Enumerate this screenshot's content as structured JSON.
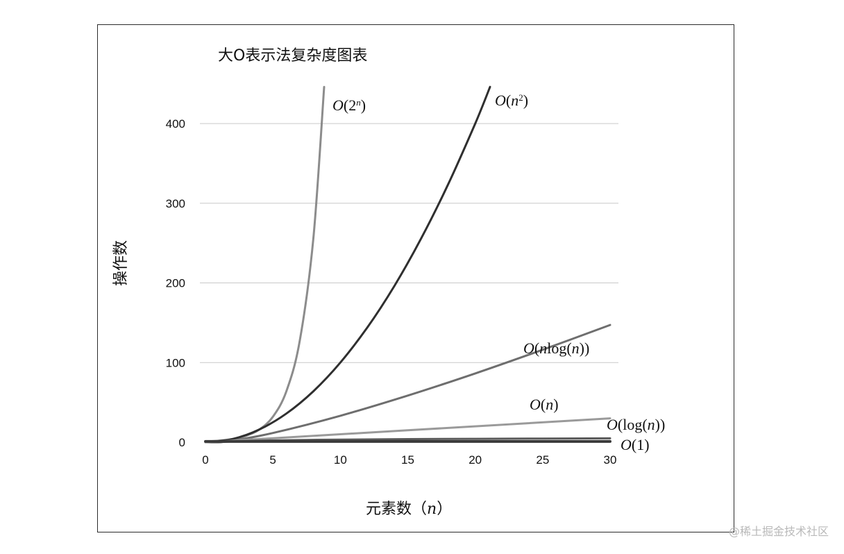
{
  "watermark": "@稀土掘金技术社区",
  "chart_data": {
    "type": "line",
    "title": "大O表示法复杂度图表",
    "xlabel_text": "元素数（",
    "xlabel_var": "n",
    "xlabel_close": "）",
    "ylabel": "操作数",
    "xlim": [
      0,
      30
    ],
    "ylim": [
      0,
      400
    ],
    "y_ticks": [
      0,
      100,
      200,
      300,
      400
    ],
    "x_ticks": [
      0,
      5,
      10,
      15,
      20,
      25,
      30
    ],
    "grid": true,
    "legend": "inline-labels",
    "series": [
      {
        "name": "O(2^n)",
        "label_parts": [
          [
            "O",
            "it"
          ],
          [
            "(2",
            "n"
          ],
          [
            "n",
            "sup"
          ],
          [
            ")",
            "n"
          ]
        ],
        "color": "#8c8c8c",
        "x": [
          0,
          1,
          2,
          3,
          4,
          5,
          6,
          7,
          8,
          8.8
        ],
        "y": [
          1,
          2,
          4,
          8,
          16,
          32,
          64,
          128,
          256,
          446
        ]
      },
      {
        "name": "O(n^2)",
        "label_parts": [
          [
            "O",
            "it"
          ],
          [
            "(",
            "n"
          ],
          [
            "n",
            "it"
          ],
          [
            "2",
            "sup"
          ],
          [
            ")",
            "n"
          ]
        ],
        "color": "#2f2f2f",
        "x": [
          0,
          2,
          4,
          6,
          8,
          10,
          12,
          14,
          16,
          18,
          20,
          21.1
        ],
        "y": [
          0,
          4,
          16,
          36,
          64,
          100,
          144,
          196,
          256,
          324,
          400,
          446
        ]
      },
      {
        "name": "O(nlog(n))",
        "label_parts": [
          [
            "O",
            "it"
          ],
          [
            "(",
            "n"
          ],
          [
            "n",
            "it"
          ],
          [
            "log(",
            "n"
          ],
          [
            "n",
            "it"
          ],
          [
            "))",
            "n"
          ]
        ],
        "color": "#6e6e6e",
        "x": [
          0,
          1,
          2,
          5,
          10,
          15,
          20,
          25,
          30
        ],
        "y": [
          0,
          0,
          2,
          11.6,
          33.2,
          58.6,
          86.4,
          116.1,
          147.2
        ]
      },
      {
        "name": "O(n)",
        "label_parts": [
          [
            "O",
            "it"
          ],
          [
            "(",
            "n"
          ],
          [
            "n",
            "it"
          ],
          [
            ")",
            "n"
          ]
        ],
        "color": "#9a9a9a",
        "x": [
          0,
          30
        ],
        "y": [
          0,
          30
        ]
      },
      {
        "name": "O(log(n))",
        "label_parts": [
          [
            "O",
            "it"
          ],
          [
            "(log(",
            "n"
          ],
          [
            "n",
            "it"
          ],
          [
            "))",
            "n"
          ]
        ],
        "color": "#5a5a5a",
        "x": [
          1,
          2,
          5,
          10,
          15,
          20,
          25,
          30
        ],
        "y": [
          0,
          1,
          2.3,
          3.3,
          3.9,
          4.3,
          4.6,
          4.9
        ]
      },
      {
        "name": "O(1)",
        "label_parts": [
          [
            "O",
            "it"
          ],
          [
            "(1)",
            "n"
          ]
        ],
        "color": "#3a3a3a",
        "x": [
          0,
          30
        ],
        "y": [
          1,
          1
        ]
      }
    ]
  }
}
